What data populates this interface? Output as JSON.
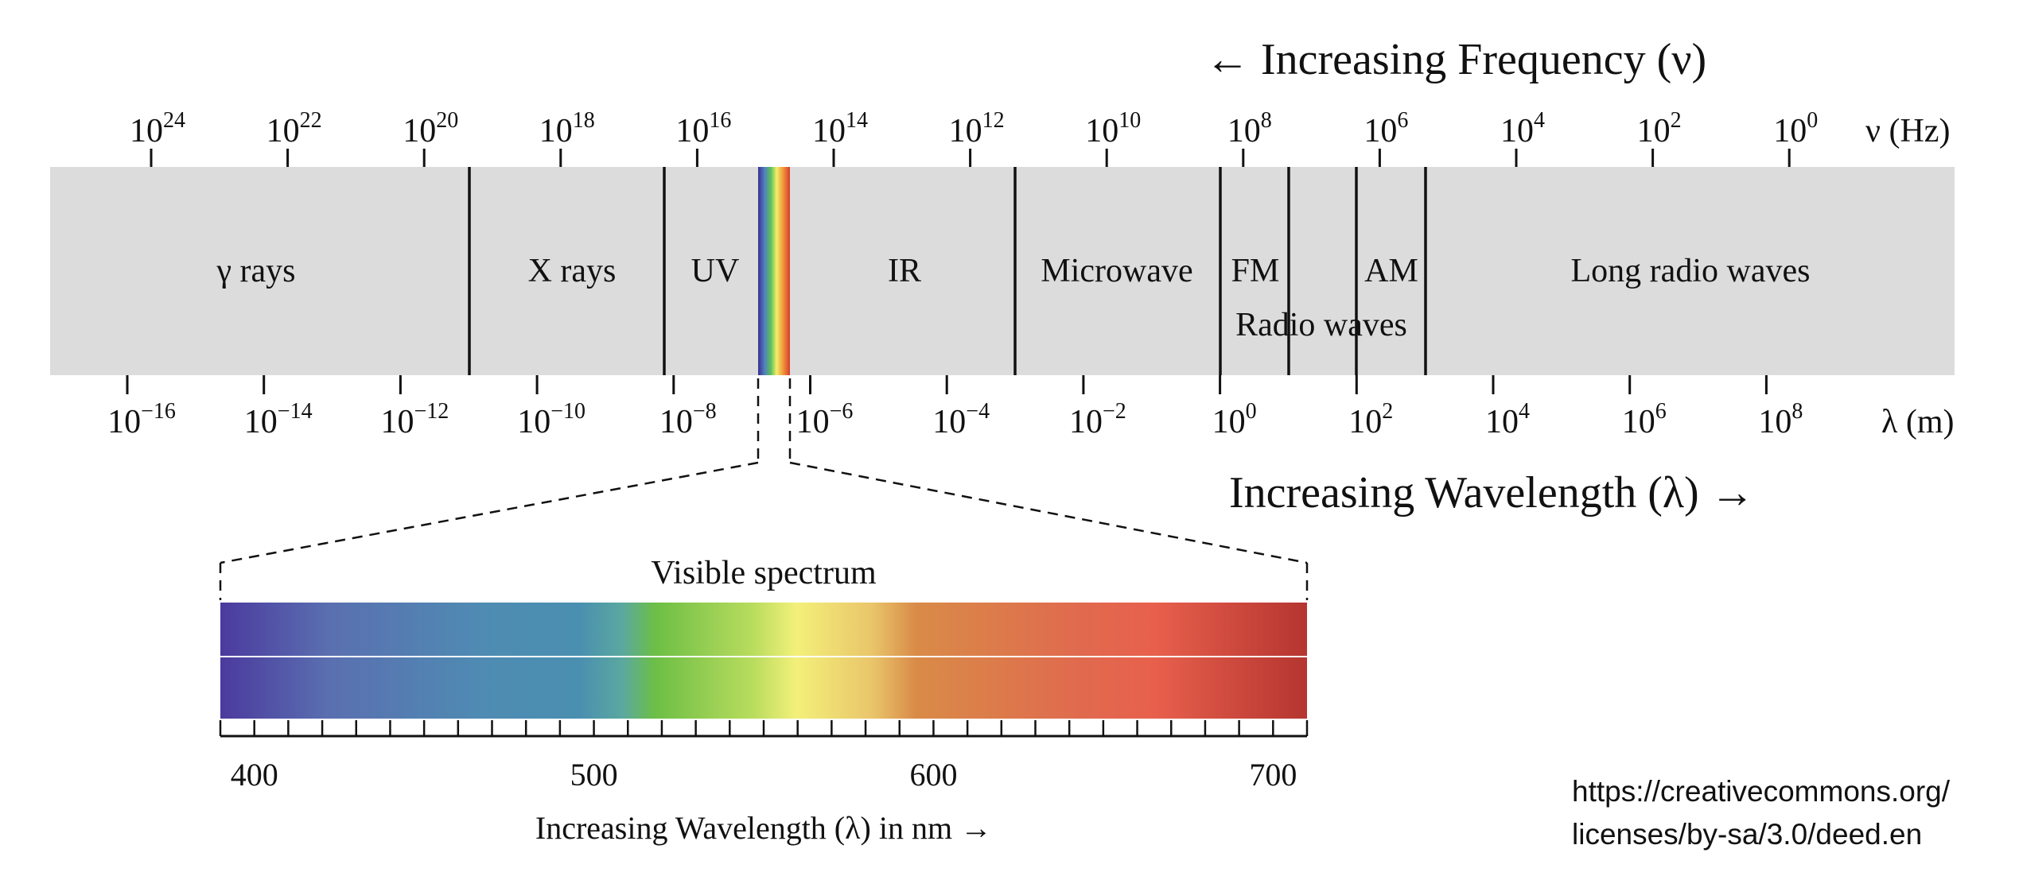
{
  "header": {
    "frequency_arrow": "← Increasing Frequency (ν)",
    "wavelength_arrow": "Increasing Wavelength (λ) →"
  },
  "frequency_axis": {
    "unit": "ν (Hz)",
    "ticks": [
      {
        "base": "10",
        "exp": "24"
      },
      {
        "base": "10",
        "exp": "22"
      },
      {
        "base": "10",
        "exp": "20"
      },
      {
        "base": "10",
        "exp": "18"
      },
      {
        "base": "10",
        "exp": "16"
      },
      {
        "base": "10",
        "exp": "14"
      },
      {
        "base": "10",
        "exp": "12"
      },
      {
        "base": "10",
        "exp": "10"
      },
      {
        "base": "10",
        "exp": "8"
      },
      {
        "base": "10",
        "exp": "6"
      },
      {
        "base": "10",
        "exp": "4"
      },
      {
        "base": "10",
        "exp": "2"
      },
      {
        "base": "10",
        "exp": "0"
      }
    ]
  },
  "wavelength_axis": {
    "unit": "λ (m)",
    "ticks": [
      {
        "base": "10",
        "exp": "−16"
      },
      {
        "base": "10",
        "exp": "−14"
      },
      {
        "base": "10",
        "exp": "−12"
      },
      {
        "base": "10",
        "exp": "−10"
      },
      {
        "base": "10",
        "exp": "−8"
      },
      {
        "base": "10",
        "exp": "−6"
      },
      {
        "base": "10",
        "exp": "−4"
      },
      {
        "base": "10",
        "exp": "−2"
      },
      {
        "base": "10",
        "exp": "0"
      },
      {
        "base": "10",
        "exp": "2"
      },
      {
        "base": "10",
        "exp": "4"
      },
      {
        "base": "10",
        "exp": "6"
      },
      {
        "base": "10",
        "exp": "8"
      }
    ]
  },
  "bands": {
    "gamma": "γ rays",
    "xray": "X rays",
    "uv": "UV",
    "ir": "IR",
    "microwave": "Microwave",
    "fm": "FM",
    "am": "AM",
    "radio": "Radio waves",
    "long_radio": "Long radio waves"
  },
  "colors": {
    "band_fill": "#dcdcdc",
    "divider": "#111111",
    "spectrum": [
      "#4b3a9e",
      "#5a6fb0",
      "#4f8bb3",
      "#4a8fb0",
      "#5aa8a0",
      "#6cbf45",
      "#b9dc5e",
      "#f3f07a",
      "#e9c56a",
      "#d98b48",
      "#e06a4e",
      "#e8604c",
      "#b53530"
    ]
  },
  "visible": {
    "title": "Visible spectrum",
    "labels": [
      "400",
      "500",
      "600",
      "700"
    ],
    "axis_label": "Increasing Wavelength (λ) in nm →"
  },
  "license": {
    "line1": "https://creativecommons.org/",
    "line2": "licenses/by-sa/3.0/deed.en"
  }
}
